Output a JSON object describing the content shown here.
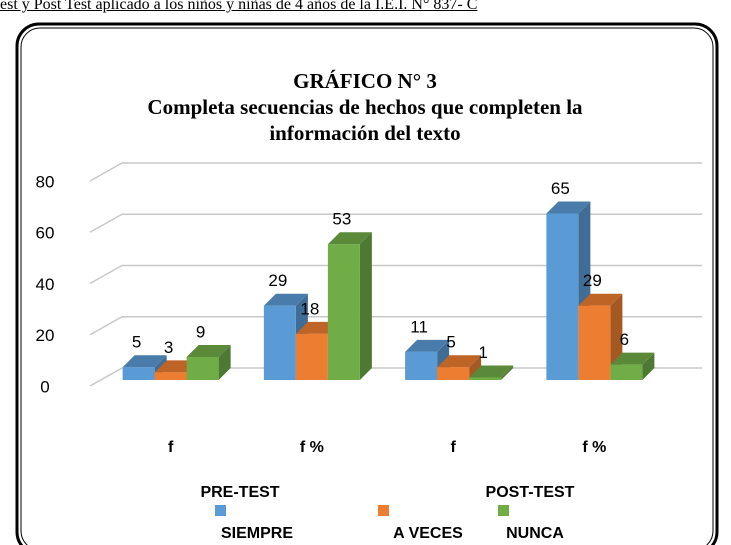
{
  "caption": "est y Post Test aplicado a los niños y niñas de  4 años de la I.E.I. N°  837- C",
  "chart_data": {
    "type": "bar3d",
    "title": "GRÁFICO N° 3",
    "subtitle": "Completa secuencias de hechos que completen la información del texto",
    "categories": [
      "f",
      "f %",
      "f",
      "f %"
    ],
    "groups": [
      "PRE-TEST",
      "POST-TEST"
    ],
    "series": [
      {
        "name": "SIEMPRE",
        "color": "#5b9bd5",
        "values": [
          5,
          29,
          11,
          65
        ]
      },
      {
        "name": "A VECES",
        "color": "#ed7d31",
        "values": [
          3,
          18,
          5,
          29
        ]
      },
      {
        "name": "NUNCA",
        "color": "#70ad47",
        "values": [
          9,
          53,
          1,
          6
        ]
      }
    ],
    "ylim": [
      0,
      80
    ],
    "yticks": [
      0,
      20,
      40,
      60,
      80
    ],
    "grid": true
  }
}
